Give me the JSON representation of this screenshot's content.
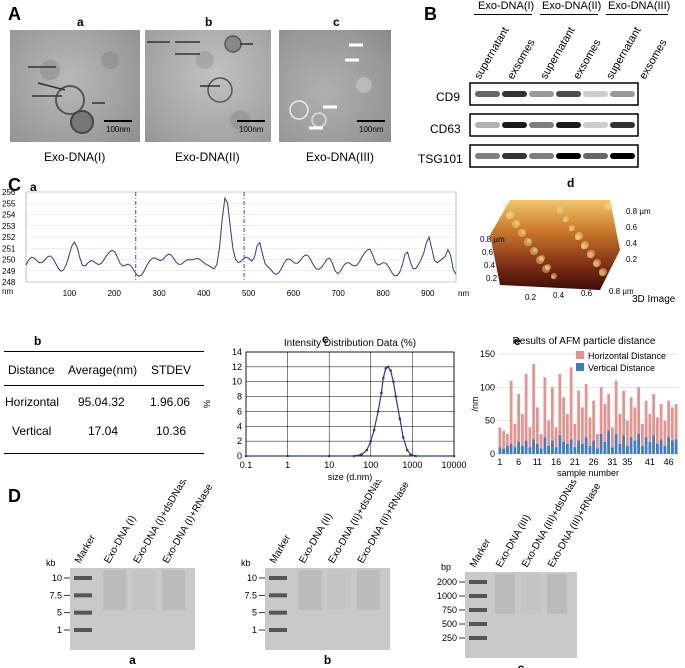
{
  "panel_A": {
    "letter": "A",
    "images": [
      {
        "sub": "a",
        "caption": "Exo-DNA(I)",
        "scale": "100nm"
      },
      {
        "sub": "b",
        "caption": "Exo-DNA(II)",
        "scale": "100nm"
      },
      {
        "sub": "c",
        "caption": "Exo-DNA(III)",
        "scale": "100nm"
      }
    ]
  },
  "panel_B": {
    "letter": "B",
    "groups": [
      "Exo-DNA(I)",
      "Exo-DNA(II)",
      "Exo-DNA(III)"
    ],
    "lanes": [
      "supernatant",
      "exsomes",
      "supernatant",
      "exsomes",
      "supernatant",
      "exsomes"
    ],
    "bands": [
      "CD9",
      "CD63",
      "TSG101"
    ]
  },
  "panel_C": {
    "letter": "C",
    "a": {
      "sub": "a",
      "y_ticks": [
        "256",
        "255",
        "254",
        "253",
        "252",
        "251",
        "250",
        "249",
        "248"
      ],
      "y_unit": "nm",
      "x_ticks": [
        "100",
        "200",
        "300",
        "400",
        "500",
        "600",
        "700",
        "800",
        "900"
      ],
      "x_unit": "nm"
    },
    "b": {
      "sub": "b",
      "headers": [
        "Distance",
        "Average(nm)",
        "STDEV"
      ],
      "rows": [
        [
          "Horizontal",
          "95.04.32",
          "1.96.06"
        ],
        [
          "Vertical",
          "17.04",
          "10.36"
        ]
      ]
    },
    "d": {
      "sub": "d",
      "caption": "3D Image",
      "z_ticks": [
        "0.8 µm",
        "0.6",
        "0.4",
        "0.2"
      ],
      "y_ticks": [
        "0.8 µm",
        "0.6",
        "0.4",
        "0.2"
      ],
      "x_ticks": [
        "0.2",
        "0.4",
        "0.6",
        "0.8 µm"
      ]
    }
  },
  "panel_D": {
    "letter": "D",
    "gels": [
      {
        "sub": "a",
        "unit": "kb",
        "ladder": [
          "10",
          "7.5",
          "5",
          "1"
        ],
        "lanes": [
          "Marker",
          "Exo-DNA (I)",
          "Exo-DNA (I)+dsDNase",
          "Exo-DNA (I)+RNase"
        ]
      },
      {
        "sub": "b",
        "unit": "kb",
        "ladder": [
          "10",
          "7.5",
          "5",
          "1"
        ],
        "lanes": [
          "Marker",
          "Exo-DNA (II)",
          "Exo-DNA (II)+dsDNase",
          "Exo-DNA (II)+RNase"
        ]
      },
      {
        "sub": "c",
        "unit": "bp",
        "ladder": [
          "2000",
          "1000",
          "750",
          "500",
          "250"
        ],
        "lanes": [
          "Marker",
          "Exo-DNA (III)",
          "Exo-DNA (III)+dsDNase",
          "Exo-DNA (III)+RNase"
        ]
      }
    ]
  },
  "chart_data": [
    {
      "type": "line",
      "sub": "c",
      "title": "Intensity Distribution Data (%)",
      "xlabel": "size (d.nm)",
      "ylabel": "%",
      "x_scale": "log",
      "xlim": [
        0.1,
        10000
      ],
      "ylim": [
        0,
        14
      ],
      "x_ticks": [
        "0.1",
        "1",
        "10",
        "100",
        "1000",
        "10000"
      ],
      "y_ticks": [
        "0",
        "2",
        "4",
        "6",
        "8",
        "10",
        "12",
        "14"
      ],
      "color": "#2e3b8c",
      "series": [
        {
          "x": [
            0.1,
            1,
            10,
            40,
            60,
            80,
            100,
            120,
            150,
            180,
            200,
            230,
            260,
            300,
            350,
            400,
            500,
            600,
            750,
            900,
            1200,
            10000
          ],
          "y": [
            0,
            0,
            0,
            0,
            0.2,
            0.8,
            2.0,
            3.5,
            6.0,
            8.5,
            10.5,
            11.8,
            12.0,
            11.5,
            10.0,
            8.0,
            5.0,
            2.5,
            0.8,
            0.2,
            0,
            0
          ]
        }
      ]
    },
    {
      "type": "bar",
      "sub": "e",
      "title": "Results of AFM particle distance",
      "xlabel": "sample number",
      "ylabel": "/nm",
      "ylim": [
        0,
        150
      ],
      "y_ticks": [
        "0",
        "50",
        "100",
        "150"
      ],
      "x_ticks": [
        "1",
        "6",
        "11",
        "16",
        "21",
        "26",
        "31",
        "35",
        "41",
        "46"
      ],
      "legend": "top-right",
      "series": [
        {
          "name": "Horizontal Distance",
          "color": "#e8928f",
          "values": [
            40,
            35,
            30,
            110,
            45,
            90,
            60,
            120,
            40,
            135,
            70,
            30,
            115,
            50,
            100,
            40,
            120,
            85,
            60,
            130,
            45,
            95,
            70,
            105,
            55,
            80,
            30,
            100,
            75,
            90,
            40,
            110,
            60,
            95,
            50,
            85,
            70,
            100,
            45,
            80,
            60,
            90,
            55,
            75,
            50,
            80,
            70,
            75
          ]
        },
        {
          "name": "Vertical Distance",
          "color": "#3b7fc0",
          "values": [
            10,
            8,
            12,
            15,
            10,
            18,
            12,
            20,
            10,
            22,
            15,
            8,
            25,
            12,
            20,
            10,
            28,
            18,
            15,
            22,
            10,
            20,
            15,
            25,
            12,
            20,
            8,
            30,
            18,
            35,
            10,
            30,
            15,
            28,
            12,
            25,
            20,
            30,
            12,
            25,
            18,
            28,
            15,
            22,
            12,
            25,
            20,
            22
          ]
        }
      ]
    }
  ]
}
